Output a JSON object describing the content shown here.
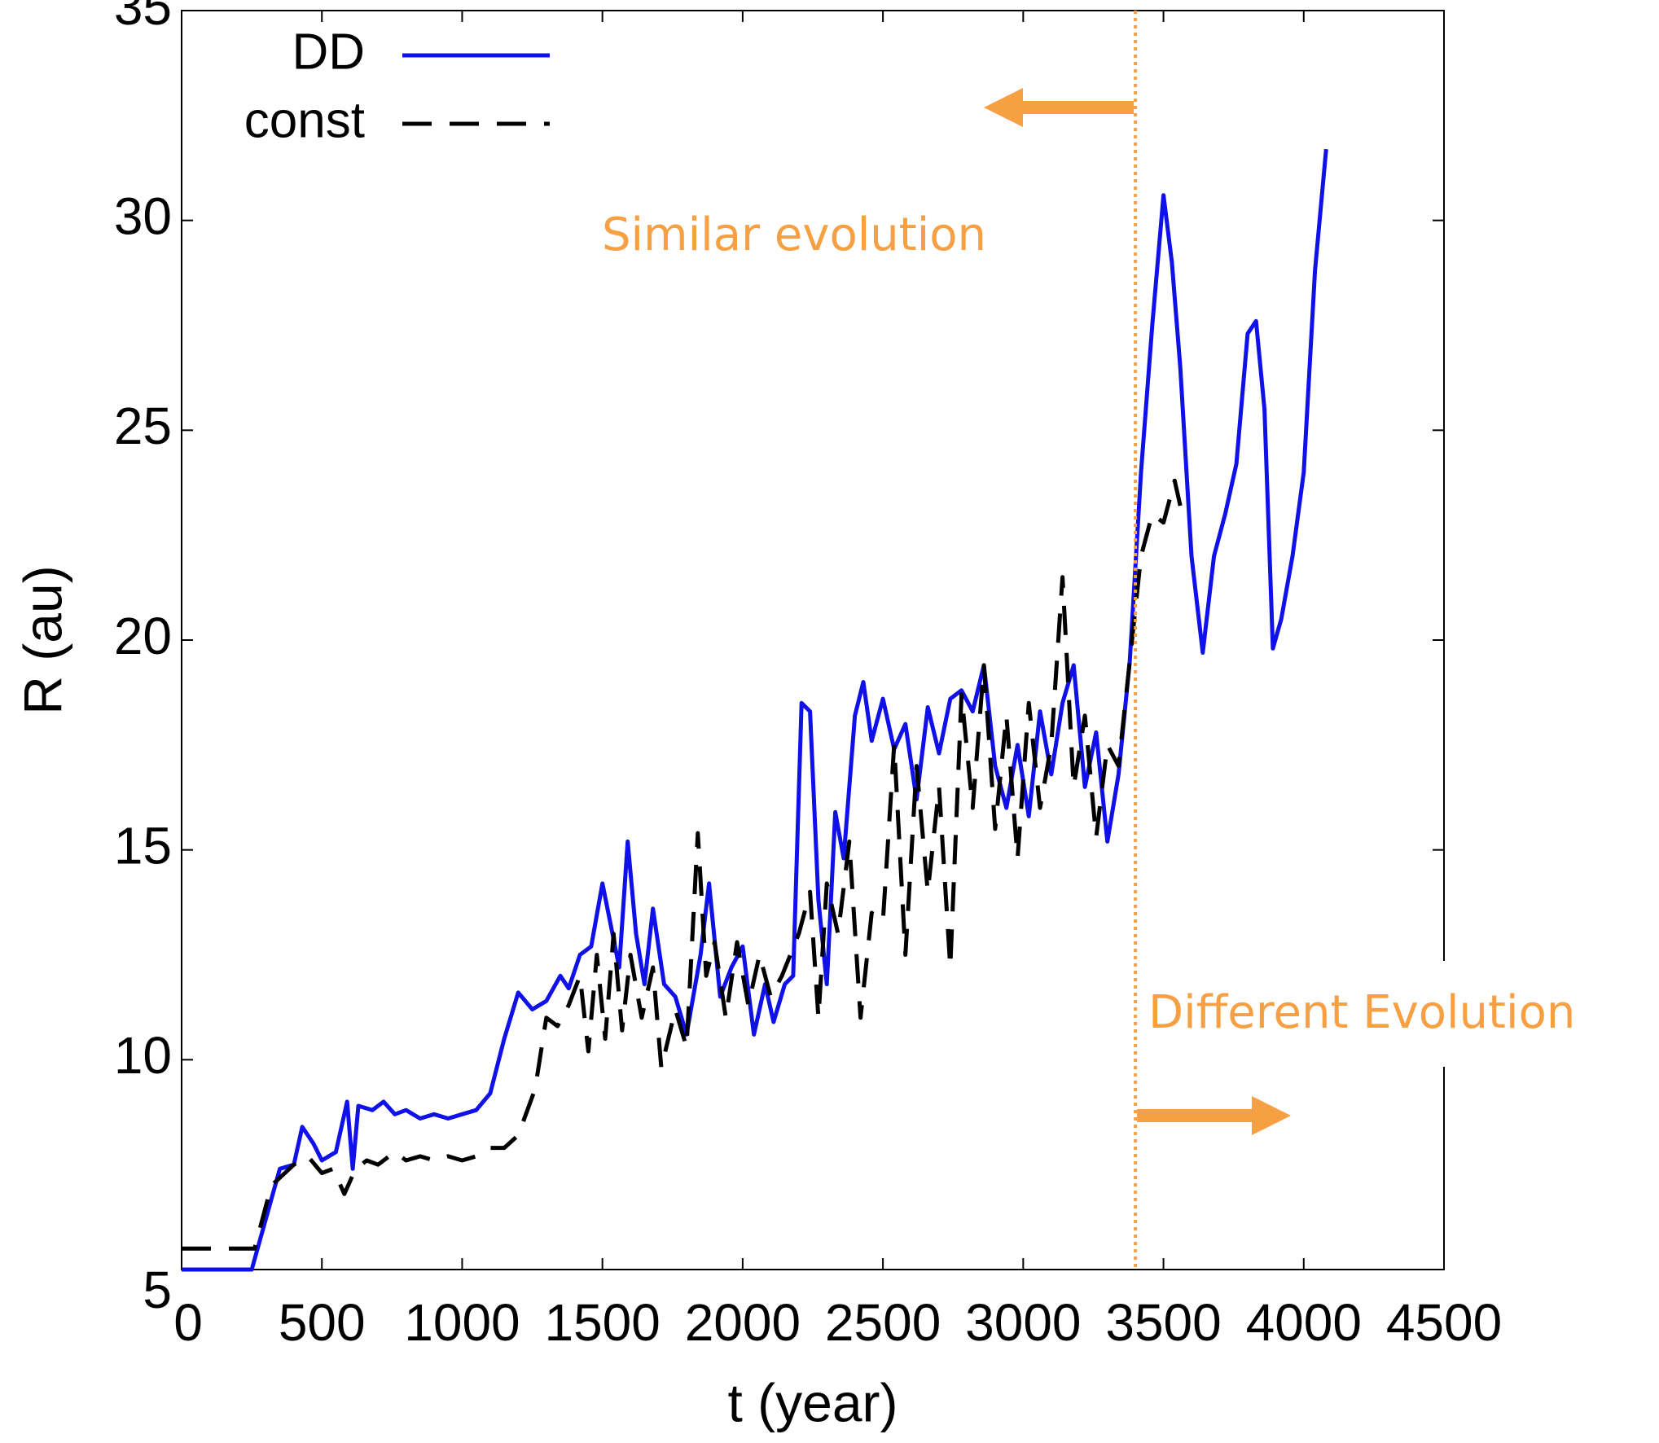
{
  "chart_data": {
    "type": "line",
    "xlabel": "t (year)",
    "ylabel": "R (au)",
    "xlim": [
      0,
      4500
    ],
    "ylim": [
      5,
      35
    ],
    "xticks": [
      0,
      500,
      1000,
      1500,
      2000,
      2500,
      3000,
      3500,
      4000,
      4500
    ],
    "yticks": [
      5,
      10,
      15,
      20,
      25,
      30,
      35
    ],
    "legend": "upper-left",
    "vline": 3400,
    "vline_color": "#f7a043",
    "annotations": [
      "Similar evolution",
      "Different Evolution"
    ],
    "series": [
      {
        "name": "DD",
        "color": "#1010e8",
        "style": "solid",
        "x": [
          0,
          250,
          300,
          350,
          400,
          430,
          470,
          500,
          550,
          590,
          610,
          630,
          680,
          720,
          760,
          800,
          850,
          900,
          950,
          1000,
          1050,
          1100,
          1150,
          1200,
          1250,
          1300,
          1350,
          1380,
          1420,
          1460,
          1500,
          1530,
          1560,
          1590,
          1620,
          1650,
          1680,
          1720,
          1760,
          1800,
          1850,
          1880,
          1920,
          1960,
          2000,
          2040,
          2080,
          2110,
          2150,
          2180,
          2210,
          2240,
          2270,
          2300,
          2330,
          2360,
          2400,
          2430,
          2460,
          2500,
          2540,
          2580,
          2620,
          2660,
          2700,
          2740,
          2780,
          2820,
          2860,
          2900,
          2940,
          2980,
          3020,
          3060,
          3100,
          3140,
          3180,
          3220,
          3260,
          3300,
          3340,
          3380,
          3420,
          3460,
          3500,
          3530,
          3560,
          3600,
          3640,
          3680,
          3720,
          3760,
          3800,
          3830,
          3860,
          3890,
          3920,
          3960,
          4000,
          4040,
          4080
        ],
        "values": [
          5,
          5,
          6.2,
          7.4,
          7.5,
          8.4,
          8.0,
          7.6,
          7.8,
          9.0,
          7.4,
          8.9,
          8.8,
          9.0,
          8.7,
          8.8,
          8.6,
          8.7,
          8.6,
          8.7,
          8.8,
          9.2,
          10.5,
          11.6,
          11.2,
          11.4,
          12.0,
          11.7,
          12.5,
          12.7,
          14.2,
          13.2,
          12.2,
          15.2,
          13.0,
          11.8,
          13.6,
          11.8,
          11.5,
          10.6,
          12.5,
          14.2,
          11.5,
          12.2,
          12.7,
          10.6,
          11.8,
          10.9,
          11.8,
          12.0,
          18.5,
          18.3,
          13.8,
          11.8,
          15.9,
          14.8,
          18.2,
          19.0,
          17.6,
          18.6,
          17.4,
          18.0,
          16.2,
          18.4,
          17.3,
          18.6,
          18.8,
          18.3,
          19.4,
          17.0,
          16.0,
          17.5,
          15.8,
          18.3,
          16.8,
          18.5,
          19.4,
          16.5,
          17.8,
          15.2,
          16.8,
          19.5,
          24.0,
          27.5,
          30.6,
          29.0,
          26.5,
          22.0,
          19.7,
          22.0,
          23.0,
          24.2,
          27.3,
          27.6,
          25.5,
          19.8,
          20.5,
          22.0,
          24.0,
          28.8,
          31.7
        ]
      },
      {
        "name": "const",
        "color": "#000000",
        "style": "dashed",
        "x": [
          0,
          260,
          320,
          400,
          450,
          500,
          540,
          580,
          620,
          660,
          700,
          760,
          800,
          850,
          900,
          950,
          1000,
          1050,
          1100,
          1150,
          1200,
          1260,
          1300,
          1340,
          1380,
          1420,
          1450,
          1480,
          1510,
          1540,
          1570,
          1600,
          1640,
          1680,
          1710,
          1760,
          1800,
          1840,
          1870,
          1900,
          1940,
          1980,
          2020,
          2060,
          2100,
          2140,
          2200,
          2240,
          2270,
          2300,
          2340,
          2380,
          2420,
          2460,
          2500,
          2540,
          2580,
          2620,
          2660,
          2700,
          2740,
          2780,
          2820,
          2860,
          2900,
          2940,
          2980,
          3020,
          3060,
          3100,
          3140,
          3180,
          3220,
          3260,
          3300,
          3340,
          3380,
          3420,
          3460,
          3500,
          3540,
          3560
        ],
        "values": [
          5.5,
          5.5,
          7.0,
          7.5,
          7.7,
          7.3,
          7.4,
          6.8,
          7.4,
          7.6,
          7.5,
          7.8,
          7.6,
          7.7,
          7.6,
          7.7,
          7.6,
          7.7,
          7.9,
          7.9,
          8.2,
          9.3,
          11.0,
          10.8,
          11.3,
          12.0,
          10.2,
          12.5,
          10.5,
          13.0,
          10.7,
          12.5,
          11.0,
          12.2,
          9.8,
          11.2,
          10.3,
          15.4,
          12.0,
          12.8,
          11.0,
          12.8,
          11.3,
          12.5,
          11.5,
          12.0,
          13.0,
          14.0,
          11.0,
          14.2,
          13.0,
          15.2,
          11.0,
          13.5,
          13.3,
          17.5,
          12.5,
          17.0,
          14.0,
          16.5,
          12.2,
          18.7,
          16.0,
          19.4,
          15.5,
          18.2,
          14.8,
          18.5,
          16.0,
          17.5,
          21.5,
          16.5,
          18.2,
          15.3,
          17.5,
          17.0,
          19.5,
          22.0,
          23.0,
          22.8,
          23.8,
          23.2
        ]
      }
    ]
  }
}
